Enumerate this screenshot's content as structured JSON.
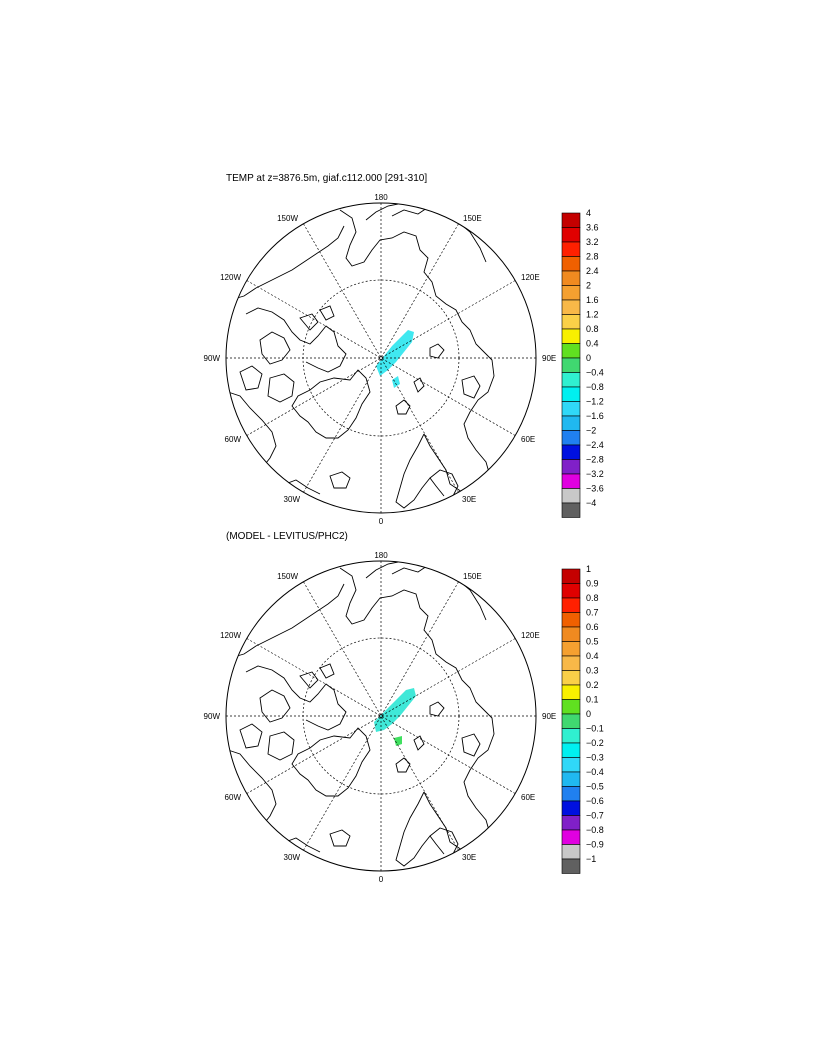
{
  "panels": [
    {
      "title": "TEMP at z=3876.5m, giaf.c112.000 [291-310]",
      "lon_labels": {
        "top": "180",
        "bottom": "0",
        "left": "90W",
        "right": "90E",
        "upper_left_1": "150W",
        "upper_left_2": "120W",
        "upper_right_1": "150E",
        "upper_right_2": "120E",
        "lower_left_1": "60W",
        "lower_left_2": "30W",
        "lower_right_1": "60E",
        "lower_right_2": "30E"
      },
      "colorbar": {
        "labels": [
          "4",
          "3.6",
          "3.2",
          "2.8",
          "2.4",
          "2",
          "1.6",
          "1.2",
          "0.8",
          "0.4",
          "0",
          "−0.4",
          "−0.8",
          "−1.2",
          "−1.6",
          "−2",
          "−2.4",
          "−2.8",
          "−3.2",
          "−3.6",
          "−4"
        ]
      }
    },
    {
      "title": "(MODEL - LEVITUS/PHC2)",
      "lon_labels": {
        "top": "180",
        "bottom": "0",
        "left": "90W",
        "right": "90E",
        "upper_left_1": "150W",
        "upper_left_2": "120W",
        "upper_right_1": "150E",
        "upper_right_2": "120E",
        "lower_left_1": "60W",
        "lower_left_2": "30W",
        "lower_right_1": "60E",
        "lower_right_2": "30E"
      },
      "colorbar": {
        "labels": [
          "1",
          "0.9",
          "0.8",
          "0.7",
          "0.6",
          "0.5",
          "0.4",
          "0.3",
          "0.2",
          "0.1",
          "0",
          "−0.1",
          "−0.2",
          "−0.3",
          "−0.4",
          "−0.5",
          "−0.6",
          "−0.7",
          "−0.8",
          "−0.9",
          "−1"
        ]
      }
    }
  ],
  "colorbar_colors": [
    "#c40000",
    "#e00000",
    "#ff2000",
    "#f06000",
    "#f08a20",
    "#f5a030",
    "#f8b848",
    "#fad048",
    "#f8f000",
    "#60e020",
    "#40d870",
    "#30f0d0",
    "#00f0f0",
    "#30d8f8",
    "#20b8f0",
    "#2080f0",
    "#0010e0",
    "#8020c8",
    "#e000e0",
    "#c8c8c8",
    "#606060"
  ],
  "shading_colors": {
    "upper": "#40e8f0",
    "lower_main": "#40e8d8",
    "lower_patch": "#40e060"
  }
}
